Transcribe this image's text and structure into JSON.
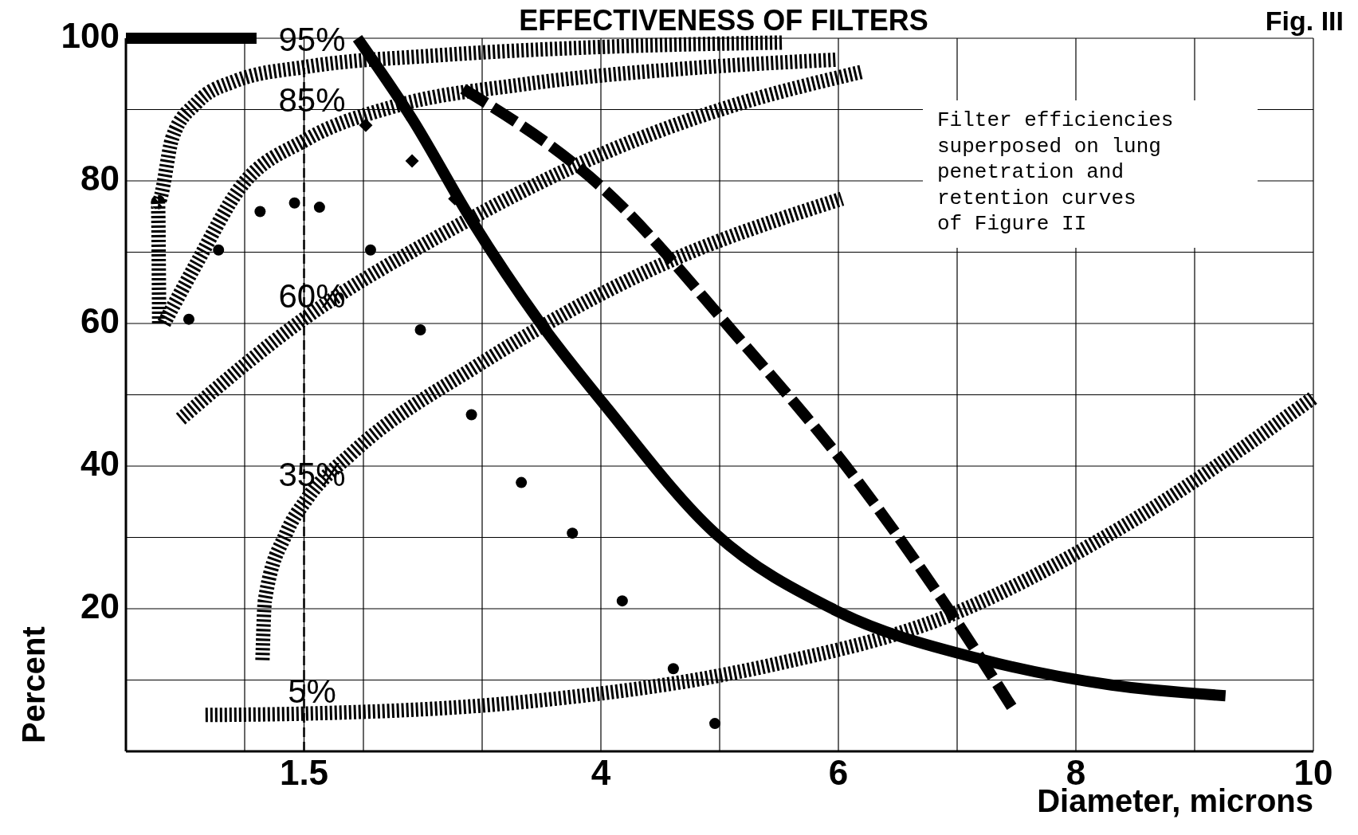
{
  "chart_data": {
    "type": "line",
    "title": "EFFECTIVENESS OF FILTERS",
    "xlabel": "Diameter, microns",
    "ylabel": "Percent",
    "xlim": [
      0,
      10
    ],
    "ylim": [
      0,
      100
    ],
    "xticks": [
      {
        "value": 1,
        "label": null
      },
      1.5,
      {
        "value": 2,
        "label": null
      },
      {
        "value": 3,
        "label": null
      },
      4,
      {
        "value": 5,
        "label": null
      },
      6,
      {
        "value": 7,
        "label": null
      },
      8,
      {
        "value": 9,
        "label": null
      },
      10
    ],
    "yticks": [
      {
        "value": 10,
        "label": null
      },
      20,
      {
        "value": 30,
        "label": null
      },
      40,
      {
        "value": 50,
        "label": null
      },
      60,
      {
        "value": 70,
        "label": null
      },
      80,
      {
        "value": 90,
        "label": null
      },
      100
    ],
    "grid": true,
    "ref_lines": [
      {
        "axis": "x",
        "value": 1.5,
        "label": null,
        "color": "#000000",
        "line_style": "dashed"
      }
    ],
    "series": [
      {
        "color": "#000000",
        "line_style": "dotted",
        "x": [
          0.28,
          0.27,
          0.39,
          0.6,
          0.92,
          1.52,
          2.62,
          4.04,
          5.53
        ],
        "values": [
          60,
          77,
          86,
          91,
          94,
          96,
          97.6,
          98.8,
          99.4
        ]
      },
      {
        "color": "#000000",
        "line_style": "dotted",
        "x": [
          0.32,
          0.6,
          0.96,
          1.52,
          2.27,
          3.33,
          4.75,
          5.99
        ],
        "values": [
          60,
          68.6,
          79,
          85.8,
          90.5,
          93.5,
          95.8,
          97
        ]
      },
      {
        "color": "#000000",
        "line_style": "dotted",
        "x": [
          0.46,
          1.52,
          2.62,
          4.04,
          5.1,
          6.2
        ],
        "values": [
          46.6,
          60.9,
          72.1,
          84,
          90.5,
          95.3
        ]
      },
      {
        "color": "#000000",
        "line_style": "dotted",
        "x": [
          1.15,
          1.17,
          1.35,
          1.52,
          1.91,
          2.98,
          4.4,
          6.03
        ],
        "values": [
          12.8,
          21.1,
          30.6,
          35.3,
          41.9,
          54.3,
          67.4,
          77.5
        ]
      },
      {
        "color": "#000000",
        "line_style": "dotted",
        "x": [
          0.67,
          1.52,
          3.33,
          5.46,
          6.88,
          8.3,
          10
        ],
        "values": [
          5.1,
          5.3,
          6.9,
          12.2,
          18.7,
          30.6,
          49.6
        ]
      },
      {
        "color": "#000000",
        "line_style": "solid",
        "x": [
          0,
          1.1,
          1.5,
          1.95,
          2.41,
          2.91,
          3.48,
          4.04,
          4.96,
          5.96,
          7.23,
          8.3,
          9.26
        ],
        "values": [
          100,
          100,
          null,
          100,
          88.7,
          74.5,
          60.3,
          48.4,
          30.6,
          19.9,
          12.8,
          9.3,
          7.8
        ]
      },
      {
        "color": "#000000",
        "line_style": "dashed",
        "x": [
          2.84,
          4.04,
          5.1,
          6.17,
          6.88,
          7.48
        ],
        "values": [
          92.9,
          78.6,
          59.1,
          37.7,
          21.1,
          5.7
        ]
      },
      {
        "type": "scatter",
        "marker": "circle",
        "color": "#000000",
        "x": [
          0.53,
          0.78,
          1.13,
          1.42,
          1.63,
          2.06,
          2.48,
          2.91,
          3.33,
          3.76,
          4.18,
          4.61,
          4.96
        ],
        "values": [
          60.6,
          70.3,
          75.7,
          76.9,
          76.3,
          70.3,
          59.1,
          47.2,
          37.7,
          30.6,
          21.1,
          11.6,
          3.9
        ]
      },
      {
        "type": "scatter",
        "marker": "diamond",
        "color": "#000000",
        "x": [
          2.02,
          2.41,
          2.77
        ],
        "values": [
          87.8,
          82.8,
          77.5
        ]
      }
    ],
    "annotations": [
      "95%",
      "85%",
      "60%",
      "35%",
      "5%",
      "Filter efficiencies\nsuperposed on lung\npenetration and\nretention curves\nof Figure II",
      "Fig. III"
    ]
  }
}
